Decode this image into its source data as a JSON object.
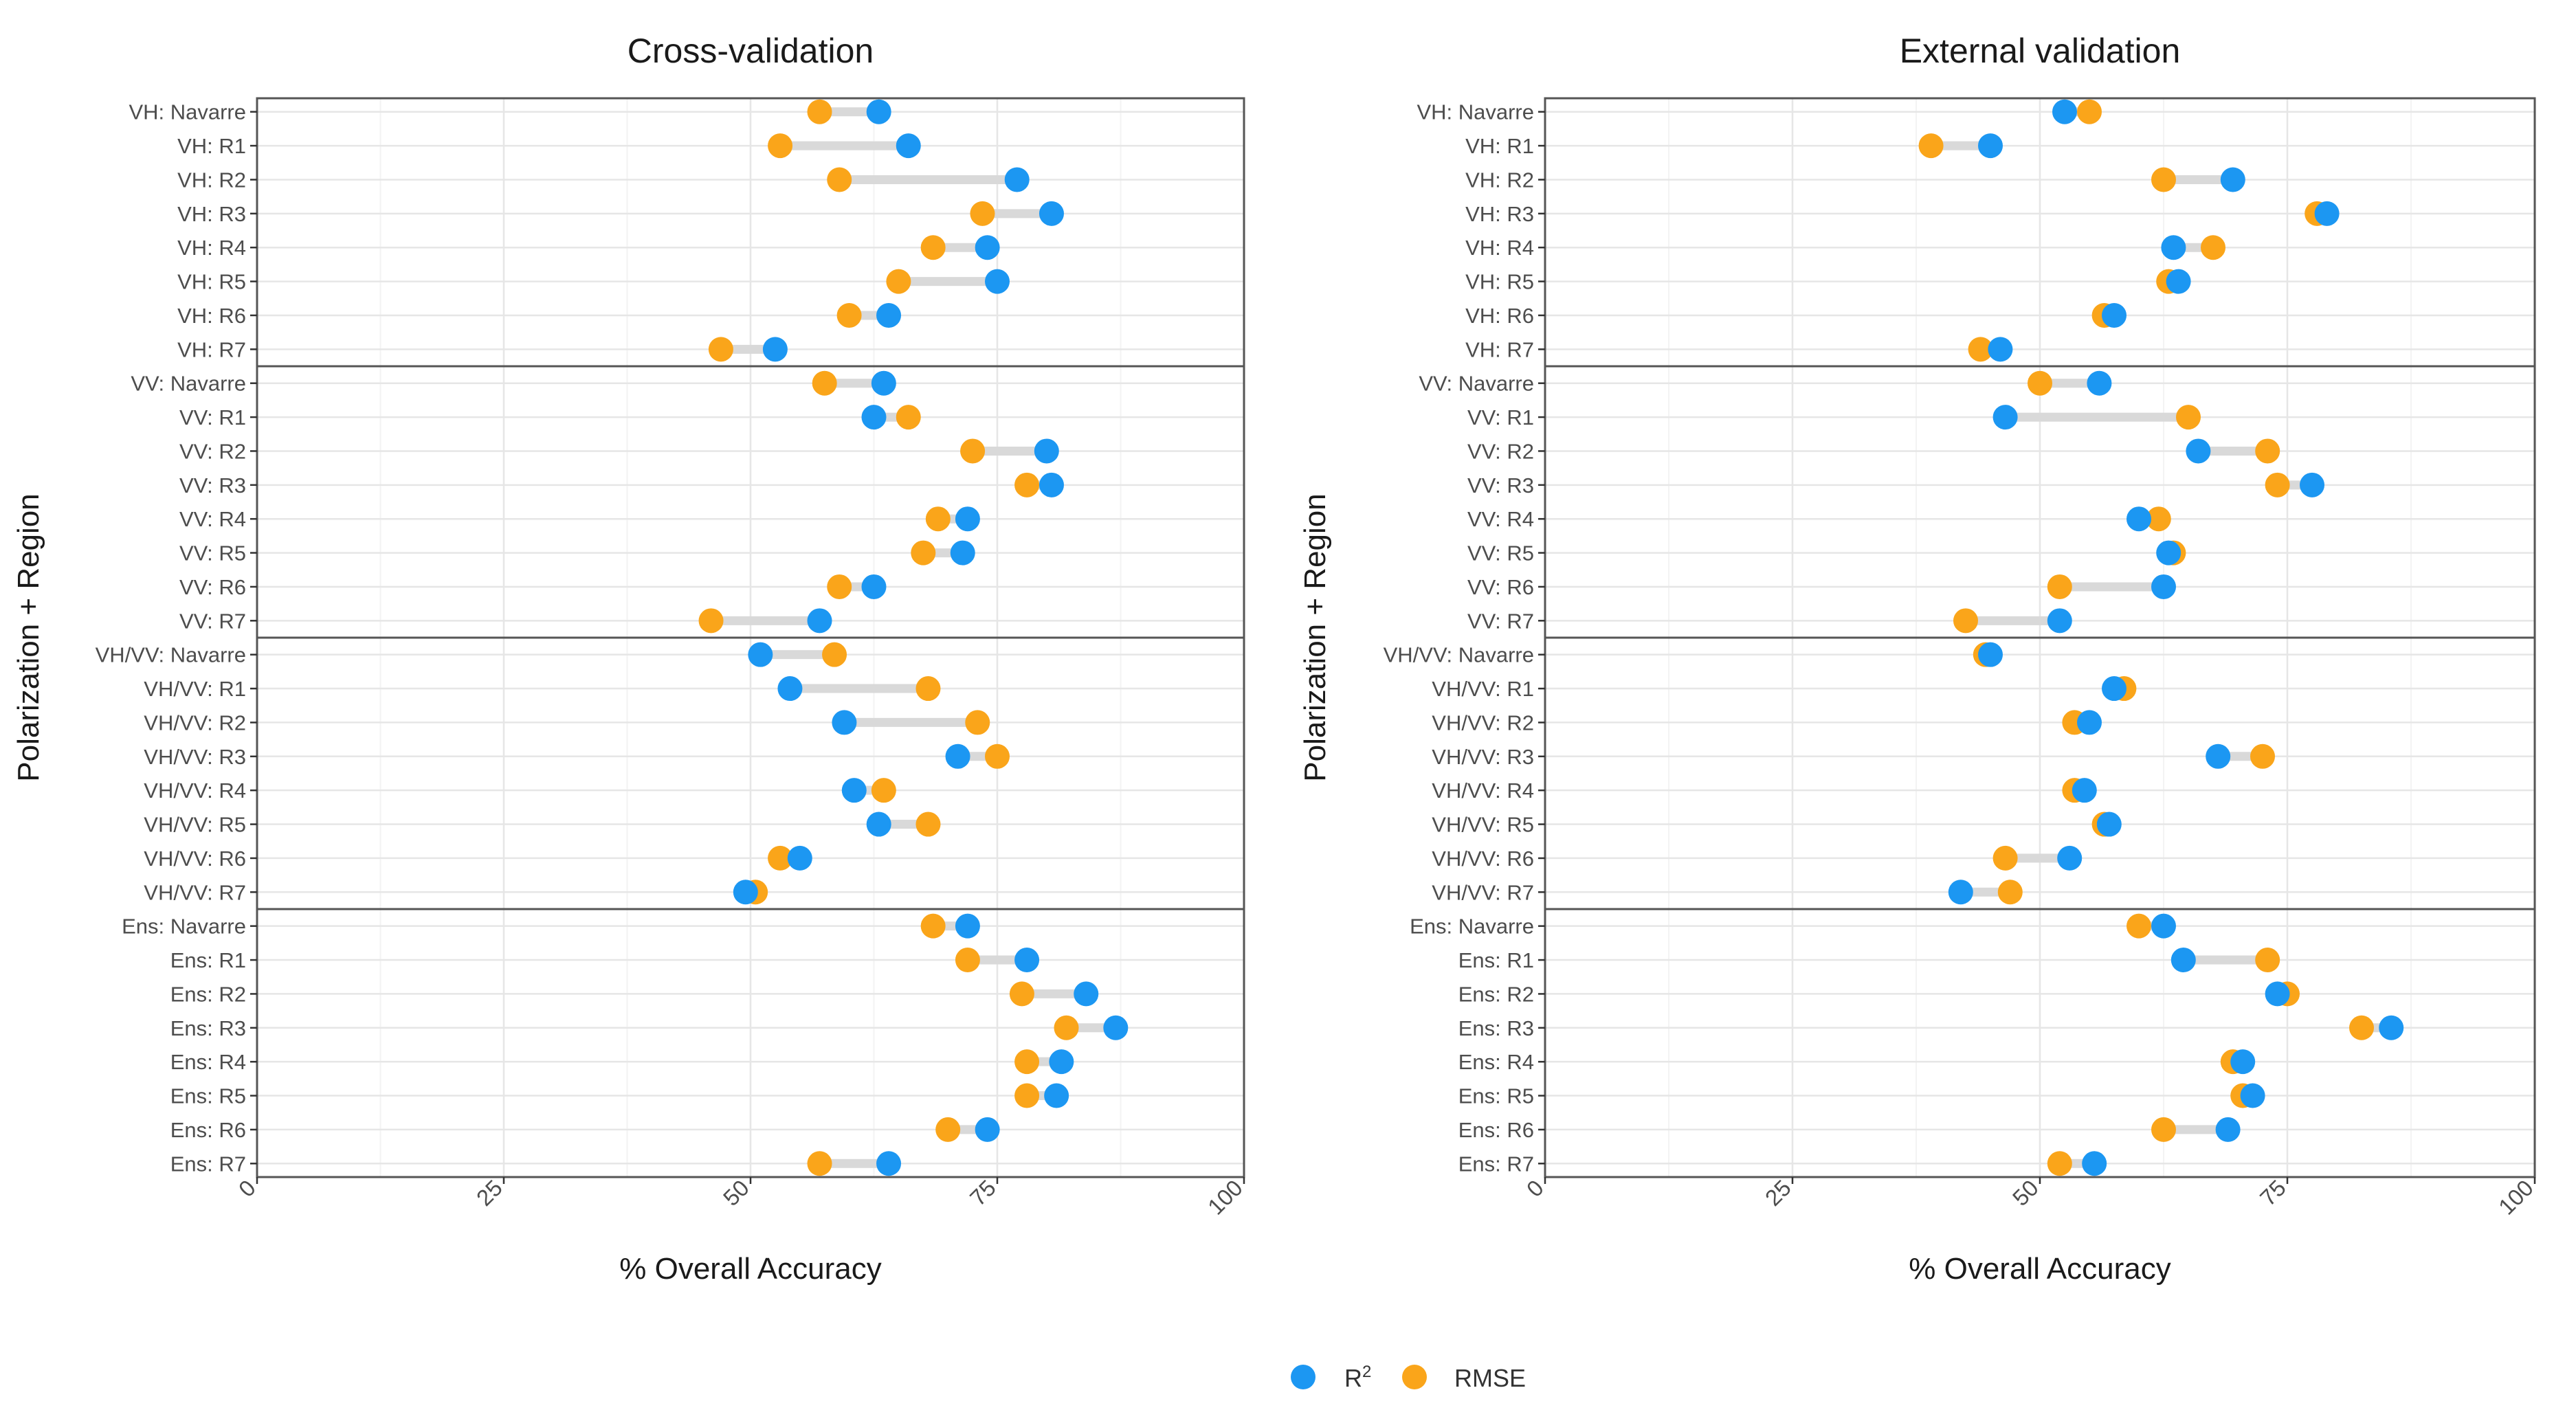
{
  "chart_data": [
    {
      "type": "dumbbell",
      "title": "Cross-validation",
      "xlabel": "% Overall Accuracy",
      "ylabel": "Polarization + Region",
      "xlim": [
        0,
        100
      ],
      "xticks": [
        "0",
        "25",
        "50",
        "75",
        "100"
      ],
      "categories": [
        "VH: Navarre",
        "VH: R1",
        "VH: R2",
        "VH: R3",
        "VH: R4",
        "VH: R5",
        "VH: R6",
        "VH: R7",
        "VV: Navarre",
        "VV: R1",
        "VV: R2",
        "VV: R3",
        "VV: R4",
        "VV: R5",
        "VV: R6",
        "VV: R7",
        "VH/VV: Navarre",
        "VH/VV: R1",
        "VH/VV: R2",
        "VH/VV: R3",
        "VH/VV: R4",
        "VH/VV: R5",
        "VH/VV: R6",
        "VH/VV: R7",
        "Ens: Navarre",
        "Ens: R1",
        "Ens: R2",
        "Ens: R3",
        "Ens: R4",
        "Ens: R5",
        "Ens: R6",
        "Ens: R7"
      ],
      "series": [
        {
          "name": "R2",
          "values": [
            63,
            66,
            77,
            80.5,
            74,
            75,
            64,
            52.5,
            63.5,
            62.5,
            80,
            80.5,
            72,
            71.5,
            62.5,
            57,
            51,
            54,
            59.5,
            71,
            60.5,
            63,
            55,
            49.5,
            72,
            78,
            84,
            87,
            81.5,
            81,
            74,
            64
          ]
        },
        {
          "name": "RMSE",
          "values": [
            57,
            53,
            59,
            73.5,
            68.5,
            65,
            60,
            47,
            57.5,
            66,
            72.5,
            78,
            69,
            67.5,
            59,
            46,
            58.5,
            68,
            73,
            75,
            63.5,
            68,
            53,
            50.5,
            68.5,
            72,
            77.5,
            82,
            78,
            78,
            70,
            57
          ]
        }
      ],
      "group_separators_after": [
        "VH: R7",
        "VV: R7",
        "VH/VV: R7"
      ]
    },
    {
      "type": "dumbbell",
      "title": "External validation",
      "xlabel": "% Overall Accuracy",
      "ylabel": "Polarization + Region",
      "xlim": [
        0,
        100
      ],
      "xticks": [
        "0",
        "25",
        "50",
        "75",
        "100"
      ],
      "categories": [
        "VH: Navarre",
        "VH: R1",
        "VH: R2",
        "VH: R3",
        "VH: R4",
        "VH: R5",
        "VH: R6",
        "VH: R7",
        "VV: Navarre",
        "VV: R1",
        "VV: R2",
        "VV: R3",
        "VV: R4",
        "VV: R5",
        "VV: R6",
        "VV: R7",
        "VH/VV: Navarre",
        "VH/VV: R1",
        "VH/VV: R2",
        "VH/VV: R3",
        "VH/VV: R4",
        "VH/VV: R5",
        "VH/VV: R6",
        "VH/VV: R7",
        "Ens: Navarre",
        "Ens: R1",
        "Ens: R2",
        "Ens: R3",
        "Ens: R4",
        "Ens: R5",
        "Ens: R6",
        "Ens: R7"
      ],
      "series": [
        {
          "name": "R2",
          "values": [
            52.5,
            45,
            69.5,
            79,
            63.5,
            64,
            57.5,
            46,
            56,
            46.5,
            66,
            77.5,
            60,
            63,
            62.5,
            52,
            45,
            57.5,
            55,
            68,
            54.5,
            57,
            53,
            42,
            62.5,
            64.5,
            74,
            85.5,
            70.5,
            71.5,
            69,
            55.5
          ]
        },
        {
          "name": "RMSE",
          "values": [
            55,
            39,
            62.5,
            78,
            67.5,
            63,
            56.5,
            44,
            50,
            65,
            73,
            74,
            62,
            63.5,
            52,
            42.5,
            44.5,
            58.5,
            53.5,
            72.5,
            53.5,
            56.5,
            46.5,
            47,
            60,
            73,
            75,
            82.5,
            69.5,
            70.5,
            62.5,
            52
          ]
        }
      ],
      "group_separators_after": [
        "VH: R7",
        "VV: R7",
        "VH/VV: R7"
      ]
    }
  ],
  "legend": {
    "items": [
      {
        "label": "R",
        "superscript": "2",
        "color": "#1c97f2"
      },
      {
        "label": "RMSE",
        "superscript": "",
        "color": "#faa51a"
      }
    ],
    "placement": "bottom-center"
  },
  "colors": {
    "r2": "#1c97f2",
    "rmse": "#faa51a",
    "segment": "#d9d9d9",
    "grid_major": "#e6e6e6",
    "grid_minor": "#f3f3f3",
    "separator": "#555555",
    "panel_border": "#555555"
  }
}
